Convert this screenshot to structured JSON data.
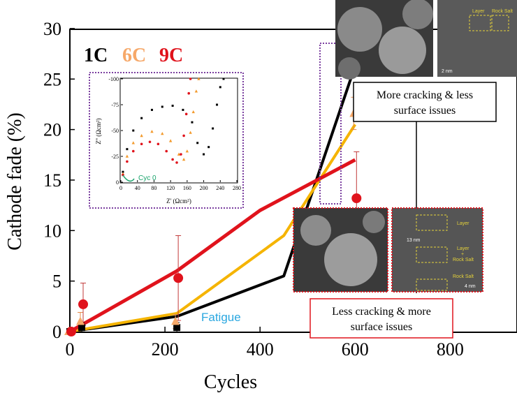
{
  "chart_data": [
    {
      "type": "line",
      "xlabel": "Cycles",
      "ylabel": "Cathode fade (%)",
      "xlim": [
        0,
        940
      ],
      "ylim": [
        0,
        30
      ],
      "xticks": [
        0,
        200,
        400,
        600,
        800
      ],
      "yticks": [
        0,
        5,
        10,
        15,
        20,
        25,
        30
      ],
      "legend": {
        "placement": "top-left",
        "entries": [
          "1C",
          "6C",
          "9C"
        ]
      },
      "colors": {
        "1C": "#000000",
        "6C": "#f6a869",
        "9C": "#e0131c",
        "6C_line": "#f5b400",
        "fatigue": "#2aa7e0"
      },
      "series": [
        {
          "name": "1C",
          "line": {
            "x": [
              0,
              225,
              450,
              600
            ],
            "y": [
              0.0,
              1.5,
              5.5,
              26.3
            ]
          },
          "markers": [
            {
              "x": 0,
              "y": 0.0,
              "err": 0
            },
            {
              "x": 25,
              "y": 0.4,
              "err": 0.5
            },
            {
              "x": 225,
              "y": 0.4,
              "err": 0.5
            },
            {
              "x": 600,
              "y": 27.3,
              "err": 0.8
            }
          ]
        },
        {
          "name": "6C",
          "line": {
            "x": [
              0,
              225,
              450,
              600
            ],
            "y": [
              0.0,
              1.8,
              9.5,
              20.5
            ]
          },
          "markers": [
            {
              "x": 0,
              "y": 0.0,
              "err": 0
            },
            {
              "x": 25,
              "y": 1.0,
              "err": 0.9
            },
            {
              "x": 225,
              "y": 1.0,
              "err": 0.7
            },
            {
              "x": 600,
              "y": 21.6,
              "err": 1.6
            }
          ]
        },
        {
          "name": "9C",
          "line": {
            "x": [
              0,
              225,
              400,
              600
            ],
            "y": [
              0.0,
              6.0,
              12.0,
              17.0
            ]
          },
          "markers": [
            {
              "x": 0,
              "y": 0.0,
              "err": 0
            },
            {
              "x": 25,
              "y": 2.7,
              "err": 2.1
            },
            {
              "x": 225,
              "y": 5.3,
              "err": 4.2
            },
            {
              "x": 600,
              "y": 13.2,
              "err": 4.6
            }
          ]
        }
      ],
      "annotations": [
        "Fatigue"
      ]
    },
    {
      "type": "scatter",
      "xlabel": "Z' (Ωcm²)",
      "ylabel": "Z'' (Ωcm²)",
      "xlim": [
        0,
        280
      ],
      "ylim": [
        0,
        -100
      ],
      "xticks": [
        0,
        40,
        80,
        120,
        160,
        200,
        240,
        280
      ],
      "yticks": [
        0,
        -25,
        -50,
        -75,
        -100
      ],
      "annotations": [
        "Cyc 0"
      ],
      "series": [
        {
          "name": "1C",
          "points": [
            [
              5,
              -10
            ],
            [
              15,
              -32
            ],
            [
              30,
              -50
            ],
            [
              50,
              -62
            ],
            [
              75,
              -70
            ],
            [
              100,
              -73
            ],
            [
              125,
              -74
            ],
            [
              150,
              -70
            ],
            [
              172,
              -58
            ],
            [
              185,
              -38
            ],
            [
              200,
              -27
            ],
            [
              212,
              -34
            ],
            [
              222,
              -52
            ],
            [
              232,
              -75
            ],
            [
              240,
              -92
            ],
            [
              248,
              -100
            ]
          ]
        },
        {
          "name": "6C",
          "points": [
            [
              5,
              -8
            ],
            [
              15,
              -25
            ],
            [
              30,
              -38
            ],
            [
              50,
              -45
            ],
            [
              75,
              -49
            ],
            [
              100,
              -47
            ],
            [
              120,
              -40
            ],
            [
              140,
              -27
            ],
            [
              152,
              -22
            ],
            [
              160,
              -30
            ],
            [
              168,
              -48
            ],
            [
              175,
              -68
            ],
            [
              182,
              -88
            ],
            [
              188,
              -100
            ]
          ]
        },
        {
          "name": "9C",
          "points": [
            [
              5,
              -7
            ],
            [
              15,
              -20
            ],
            [
              30,
              -30
            ],
            [
              50,
              -37
            ],
            [
              70,
              -39
            ],
            [
              90,
              -37
            ],
            [
              110,
              -30
            ],
            [
              125,
              -22
            ],
            [
              135,
              -19
            ],
            [
              145,
              -27
            ],
            [
              152,
              -45
            ],
            [
              158,
              -66
            ],
            [
              164,
              -86
            ],
            [
              168,
              -100
            ]
          ]
        }
      ]
    }
  ],
  "panels": {
    "top": {
      "caption_line1": "More cracking & less",
      "caption_line2": "surface issues",
      "scale": "2 nm",
      "labels": [
        "Layer",
        "Rock Salt"
      ]
    },
    "bottom": {
      "caption_line1": "Less cracking & more",
      "caption_line2": "surface issues",
      "scale": "13 nm",
      "scale2": "4 nm",
      "labels": [
        "Layer",
        "Layer",
        "+",
        "Rock Salt",
        "Rock Salt"
      ]
    }
  }
}
